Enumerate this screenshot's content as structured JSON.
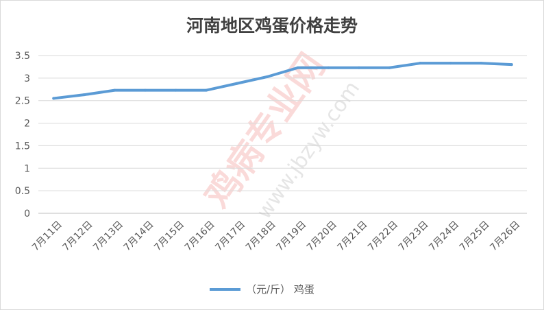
{
  "chart_data": {
    "type": "line",
    "title": "河南地区鸡蛋价格走势",
    "categories": [
      "7月11日",
      "7月12日",
      "7月13日",
      "7月14日",
      "7月15日",
      "7月16日",
      "7月17日",
      "7月18日",
      "7月19日",
      "7月20日",
      "7月21日",
      "7月22日",
      "7月23日",
      "7月24日",
      "7月25日",
      "7月26日"
    ],
    "series": [
      {
        "name": "（元/斤） 鸡蛋",
        "color": "#5b9bd5",
        "values": [
          2.55,
          2.63,
          2.73,
          2.73,
          2.73,
          2.73,
          2.88,
          3.03,
          3.23,
          3.23,
          3.23,
          3.23,
          3.33,
          3.33,
          3.33,
          3.3
        ]
      }
    ],
    "ylim": [
      0,
      3.5
    ],
    "yticks": [
      "0",
      "0.5",
      "1",
      "1.5",
      "2",
      "2.5",
      "3",
      "3.5"
    ],
    "grid": true,
    "legend": "bottom"
  },
  "watermark": {
    "text": "鸡病专业网",
    "url": "www.jbzyw.com"
  }
}
